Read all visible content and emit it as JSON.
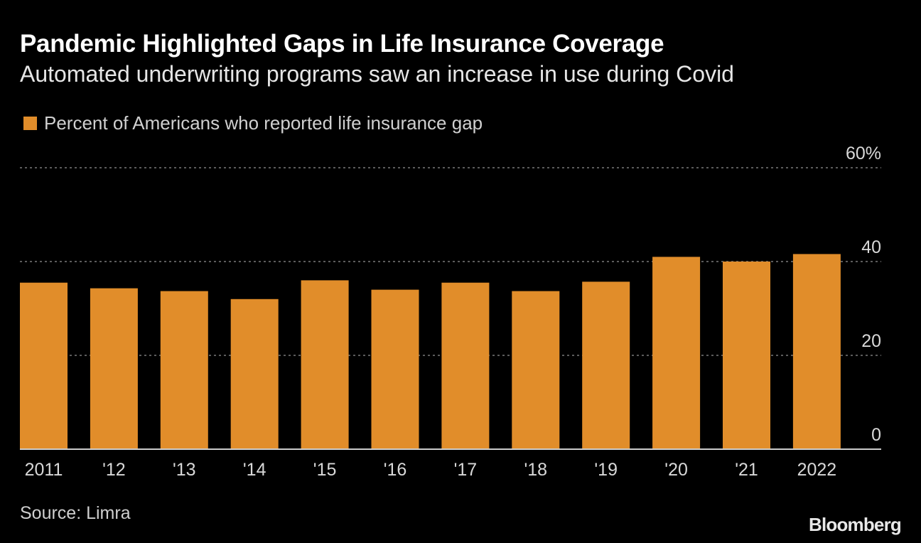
{
  "header": {
    "title": "Pandemic Highlighted Gaps in Life Insurance Coverage",
    "subtitle": "Automated underwriting programs saw an increase in use during Covid"
  },
  "legend": {
    "label": "Percent of Americans who reported life insurance gap"
  },
  "footer": {
    "source": "Source: Limra",
    "brand": "Bloomberg"
  },
  "colors": {
    "bar": "#e18d2a",
    "background": "#000000",
    "grid": "#7a7a7a",
    "axis": "#cccccc",
    "tick_text": "#d8d8d8"
  },
  "chart_data": {
    "type": "bar",
    "categories": [
      "2011",
      "'12",
      "'13",
      "'14",
      "'15",
      "'16",
      "'17",
      "'18",
      "'19",
      "'20",
      "'21",
      "2022"
    ],
    "series": [
      {
        "name": "Percent of Americans who reported life insurance gap",
        "values": [
          35.5,
          34.3,
          33.7,
          32,
          36,
          34,
          35.5,
          33.7,
          35.7,
          41,
          40,
          41.6
        ]
      }
    ],
    "ylim": [
      0,
      60
    ],
    "yticks": [
      0,
      20,
      40,
      60
    ],
    "ytick_labels": [
      "0",
      "20",
      "40",
      "60%"
    ],
    "grid": true,
    "axis_side": "right",
    "legend_position": "top-left"
  }
}
